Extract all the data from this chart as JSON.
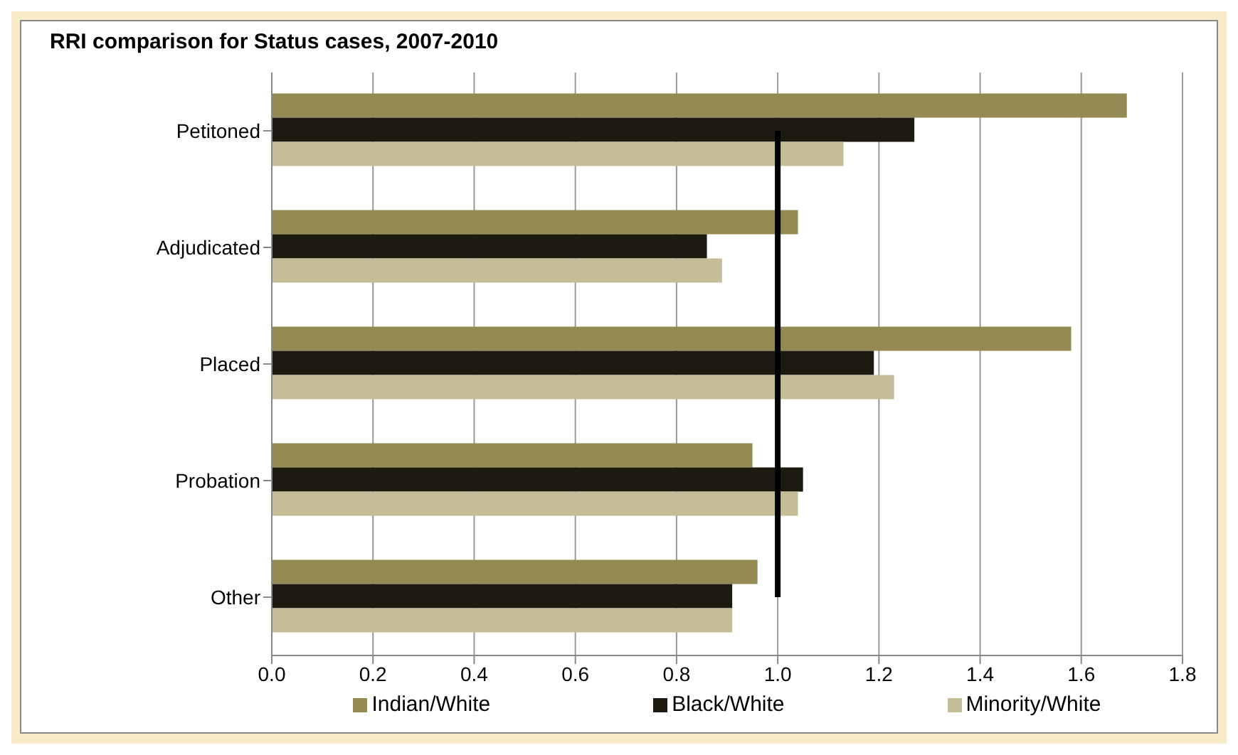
{
  "chart_data": {
    "type": "bar",
    "orientation": "horizontal",
    "title": "RRI comparison for Status cases, 2007-2010",
    "categories": [
      "Petitoned",
      "Adjudicated",
      "Placed",
      "Probation",
      "Other"
    ],
    "series": [
      {
        "name": "Indian/White",
        "color": "#948a54",
        "values": [
          1.69,
          1.04,
          1.58,
          0.95,
          0.96
        ]
      },
      {
        "name": "Black/White",
        "color": "#1d1b10",
        "values": [
          1.27,
          0.86,
          1.19,
          1.05,
          0.91
        ]
      },
      {
        "name": "Minority/White",
        "color": "#c4bd97",
        "values": [
          1.13,
          0.89,
          1.23,
          1.04,
          0.91
        ]
      }
    ],
    "xlim": [
      0,
      1.8
    ],
    "xticks": [
      {
        "value": 0,
        "label": "0.0"
      },
      {
        "value": 0.2,
        "label": "0.2"
      },
      {
        "value": 0.4,
        "label": "0.4"
      },
      {
        "value": 0.6,
        "label": "0.6"
      },
      {
        "value": 0.8,
        "label": "0.8"
      },
      {
        "value": 1,
        "label": "1.0"
      },
      {
        "value": 1.2,
        "label": "1.2"
      },
      {
        "value": 1.4,
        "label": "1.4"
      },
      {
        "value": 1.6,
        "label": "1.6"
      },
      {
        "value": 1.8,
        "label": "1.8"
      }
    ],
    "grid": "x",
    "legend": "bottom",
    "ref_lines": [
      {
        "axis": "x",
        "value": 1,
        "color": "#000000"
      }
    ]
  }
}
